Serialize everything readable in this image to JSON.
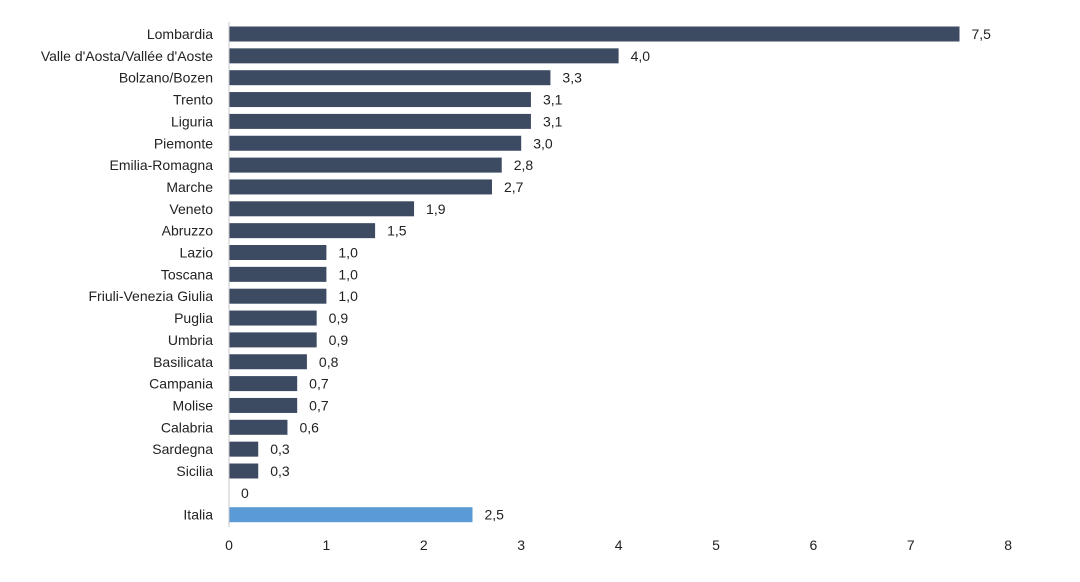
{
  "chart_data": {
    "type": "bar",
    "orientation": "horizontal",
    "title": "",
    "xlabel": "",
    "ylabel": "",
    "xlim": [
      0,
      8
    ],
    "ticks": [
      0,
      1,
      2,
      3,
      4,
      5,
      6,
      7,
      8
    ],
    "grid": false,
    "legend": "none",
    "decimal_separator": ",",
    "colors": {
      "default_bar": "#3c4a62",
      "highlight_bar": "#5b9bd5",
      "axis": "#c8c8c8",
      "text": "#222222"
    },
    "categories": [
      "Lombardia",
      "Valle d'Aosta/Vallée d'Aoste",
      "Bolzano/Bozen",
      "Trento",
      "Liguria",
      "Piemonte",
      "Emilia-Romagna",
      "Marche",
      "Veneto",
      "Abruzzo",
      "Lazio",
      "Toscana",
      "Friuli-Venezia Giulia",
      "Puglia",
      "Umbria",
      "Basilicata",
      "Campania",
      "Molise",
      "Calabria",
      "Sardegna",
      "Sicilia",
      "",
      "Italia"
    ],
    "values": [
      7.5,
      4.0,
      3.3,
      3.1,
      3.1,
      3.0,
      2.8,
      2.7,
      1.9,
      1.5,
      1.0,
      1.0,
      1.0,
      0.9,
      0.9,
      0.8,
      0.7,
      0.7,
      0.6,
      0.3,
      0.3,
      0,
      2.5
    ],
    "value_labels": [
      "7,5",
      "4,0",
      "3,3",
      "3,1",
      "3,1",
      "3,0",
      "2,8",
      "2,7",
      "1,9",
      "1,5",
      "1,0",
      "1,0",
      "1,0",
      "0,9",
      "0,9",
      "0,8",
      "0,7",
      "0,7",
      "0,6",
      "0,3",
      "0,3",
      "0",
      "2,5"
    ],
    "highlight": [
      "Italia"
    ]
  }
}
